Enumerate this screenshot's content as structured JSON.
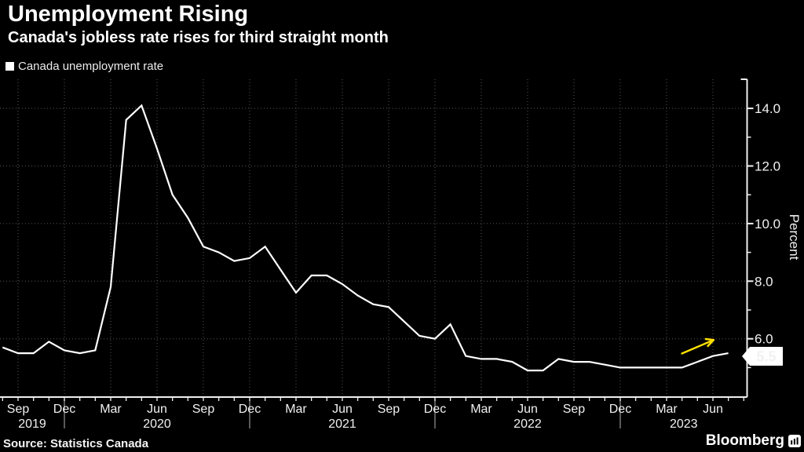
{
  "header": {
    "title": "Unemployment Rising",
    "subtitle": "Canada's jobless rate rises for third straight month"
  },
  "legend": {
    "label": "Canada unemployment rate",
    "marker_color": "#ffffff"
  },
  "source": "Source: Statistics Canada",
  "brand": {
    "name": "Bloomberg"
  },
  "colors": {
    "background": "#000000",
    "line": "#ffffff",
    "grid": "#575757",
    "axis": "#f0f0f0",
    "tick_text": "#f1f1f1",
    "year_divider": "#8a8a8a",
    "annotation_arrow": "#ffe100",
    "last_value_tag_bg": "#ffffff",
    "last_value_tag_text": "#000000"
  },
  "chart_data": {
    "type": "line",
    "title": "Unemployment Rising",
    "subtitle": "Canada's jobless rate rises for third straight month",
    "series_name": "Canada unemployment rate",
    "ylabel": "Percent",
    "ylim": [
      4.0,
      14.9
    ],
    "grid": true,
    "legend_position": "top-left",
    "y_major_ticks": [
      6,
      8,
      10,
      12,
      14
    ],
    "y_tick_labels": [
      "6.0",
      "8.0",
      "10.0",
      "12.0",
      "14.0"
    ],
    "y_minor_ticks": [
      5,
      7,
      9,
      11,
      13
    ],
    "x_tick_labels": [
      "Sep",
      "Dec",
      "Mar",
      "Jun",
      "Sep",
      "Dec",
      "Mar",
      "Jun",
      "Sep",
      "Dec",
      "Mar",
      "Jun",
      "Sep",
      "Dec",
      "Mar",
      "Jun"
    ],
    "year_labels": [
      "2019",
      "2020",
      "2021",
      "2022",
      "2023"
    ],
    "last_value_label": "5.5",
    "annotation_arrow": {
      "present": true,
      "points_to": "recent three-month rise"
    },
    "months": [
      "Aug 2019",
      "Sep 2019",
      "Oct 2019",
      "Nov 2019",
      "Dec 2019",
      "Jan 2020",
      "Feb 2020",
      "Mar 2020",
      "Apr 2020",
      "May 2020",
      "Jun 2020",
      "Jul 2020",
      "Aug 2020",
      "Sep 2020",
      "Oct 2020",
      "Nov 2020",
      "Dec 2020",
      "Jan 2021",
      "Feb 2021",
      "Mar 2021",
      "Apr 2021",
      "May 2021",
      "Jun 2021",
      "Jul 2021",
      "Aug 2021",
      "Sep 2021",
      "Oct 2021",
      "Nov 2021",
      "Dec 2021",
      "Jan 2022",
      "Feb 2022",
      "Mar 2022",
      "Apr 2022",
      "May 2022",
      "Jun 2022",
      "Jul 2022",
      "Aug 2022",
      "Sep 2022",
      "Oct 2022",
      "Nov 2022",
      "Dec 2022",
      "Jan 2023",
      "Feb 2023",
      "Mar 2023",
      "Apr 2023",
      "May 2023",
      "Jun 2023",
      "Jul 2023"
    ],
    "values": [
      5.7,
      5.5,
      5.5,
      5.9,
      5.6,
      5.5,
      5.6,
      7.8,
      13.6,
      14.1,
      12.6,
      11.0,
      10.2,
      9.2,
      9.0,
      8.7,
      8.8,
      9.2,
      8.4,
      7.6,
      8.2,
      8.2,
      7.9,
      7.5,
      7.2,
      7.1,
      6.6,
      6.1,
      6.0,
      6.5,
      5.4,
      5.3,
      5.3,
      5.2,
      4.9,
      4.9,
      5.3,
      5.2,
      5.2,
      5.1,
      5.0,
      5.0,
      5.0,
      5.0,
      5.0,
      5.2,
      5.4,
      5.5
    ]
  }
}
